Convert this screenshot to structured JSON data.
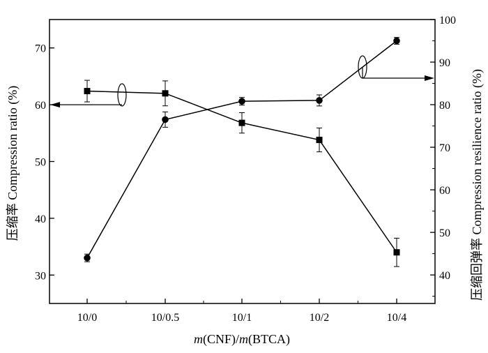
{
  "chart_data": {
    "type": "line",
    "categories": [
      "10/0",
      "10/0.5",
      "10/1",
      "10/2",
      "10/4"
    ],
    "xlabel": {
      "parts": [
        {
          "text": "m",
          "italic": true
        },
        {
          "text": "(CNF)/",
          "italic": false
        },
        {
          "text": "m",
          "italic": true
        },
        {
          "text": "(BTCA)",
          "italic": false
        }
      ]
    },
    "left_axis": {
      "label": "压缩率 Compression ratio (%)",
      "range": [
        25,
        75
      ],
      "ticks": [
        30,
        40,
        50,
        60,
        70
      ]
    },
    "right_axis": {
      "label": "压缩回弹率 Compression resilience ratio (%)",
      "range": [
        33.3,
        100
      ],
      "ticks": [
        40,
        50,
        60,
        70,
        80,
        90,
        100
      ]
    },
    "series": [
      {
        "axis": "left",
        "marker": "square",
        "values": [
          62.4,
          62.0,
          56.8,
          53.8,
          34.0
        ],
        "error": [
          1.9,
          2.2,
          1.8,
          2.1,
          2.5
        ]
      },
      {
        "axis": "right",
        "marker": "circle",
        "values": [
          44.0,
          76.5,
          80.8,
          81.0,
          95.0
        ],
        "error": [
          0.9,
          1.8,
          0.9,
          1.3,
          0.8
        ]
      }
    ]
  }
}
